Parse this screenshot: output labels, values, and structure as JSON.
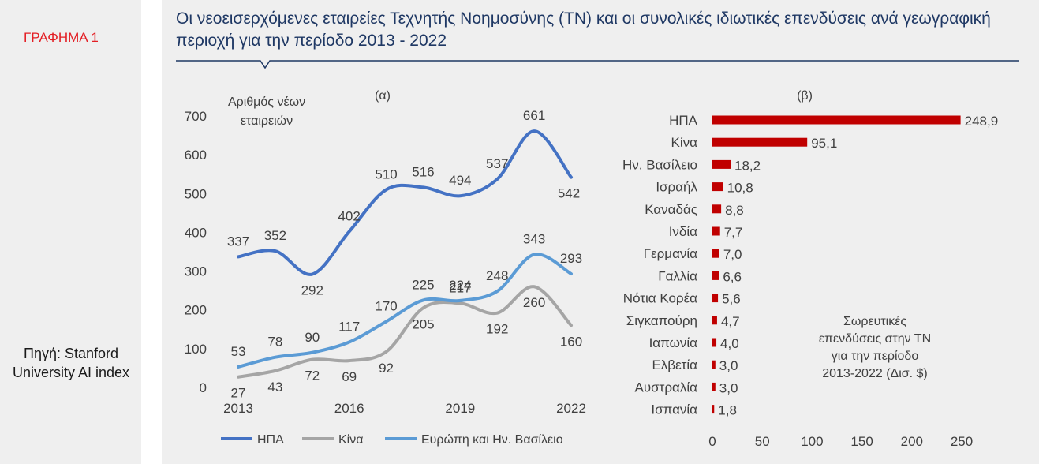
{
  "sidebar": {
    "graph_label": "ΓΡΑΦΗΜΑ 1",
    "source": "Πηγή: Stanford University AI index"
  },
  "title": "Οι νεοεισερχόμενες εταιρείες Τεχνητής Νοημοσύνης (ΤΝ) και οι συνολικές ιδιωτικές επενδύσεις ανά γεωγραφική περιοχή για την περίοδο 2013 - 2022",
  "colors": {
    "title": "#1f3864",
    "graph_label": "#e31e24",
    "usa": "#4472c4",
    "china": "#a5a5a5",
    "europe": "#5b9bd5",
    "bar": "#c00000"
  },
  "chart_data": [
    {
      "type": "line",
      "panel_label": "(α)",
      "ylabel": "Αριθμός νέων εταιρειών",
      "ylim": [
        0,
        700
      ],
      "yticks": [
        0,
        100,
        200,
        300,
        400,
        500,
        600,
        700
      ],
      "x": [
        2013,
        2014,
        2015,
        2016,
        2017,
        2018,
        2019,
        2020,
        2021,
        2022
      ],
      "xtick_labels": [
        "2013",
        "2016",
        "2019",
        "2022"
      ],
      "legend_position": "bottom",
      "series": [
        {
          "name": "ΗΠΑ",
          "values": [
            337,
            352,
            292,
            402,
            510,
            516,
            494,
            537,
            661,
            542
          ]
        },
        {
          "name": "Κίνα",
          "values": [
            27,
            43,
            72,
            69,
            92,
            205,
            217,
            192,
            260,
            160
          ]
        },
        {
          "name": "Ευρώπη και Ην. Βασίλειο",
          "values": [
            53,
            78,
            90,
            117,
            170,
            225,
            224,
            248,
            343,
            293
          ]
        }
      ]
    },
    {
      "type": "bar",
      "orientation": "horizontal",
      "panel_label": "(β)",
      "categories": [
        "ΗΠΑ",
        "Κίνα",
        "Ην. Βασίλειο",
        "Ισραήλ",
        "Καναδάς",
        "Ινδία",
        "Γερμανία",
        "Γαλλία",
        "Νότια Κορέα",
        "Σιγκαπούρη",
        "Ιαπωνία",
        "Ελβετία",
        "Αυστραλία",
        "Ισπανία"
      ],
      "values": [
        248.9,
        95.1,
        18.2,
        10.8,
        8.8,
        7.7,
        7.0,
        6.6,
        5.6,
        4.7,
        4.0,
        3.0,
        3.0,
        1.8
      ],
      "value_labels": [
        "248,9",
        "95,1",
        "18,2",
        "10,8",
        "8,8",
        "7,7",
        "7,0",
        "6,6",
        "5,6",
        "4,7",
        "4,0",
        "3,0",
        "3,0",
        "1,8"
      ],
      "xlim": [
        0,
        250
      ],
      "xticks": [
        0,
        50,
        100,
        150,
        200,
        250
      ],
      "annotation": [
        "Σωρευτικές",
        "επενδύσεις στην ΤΝ",
        "για την περίοδο",
        "2013-2022 (Δισ. $)"
      ]
    }
  ]
}
